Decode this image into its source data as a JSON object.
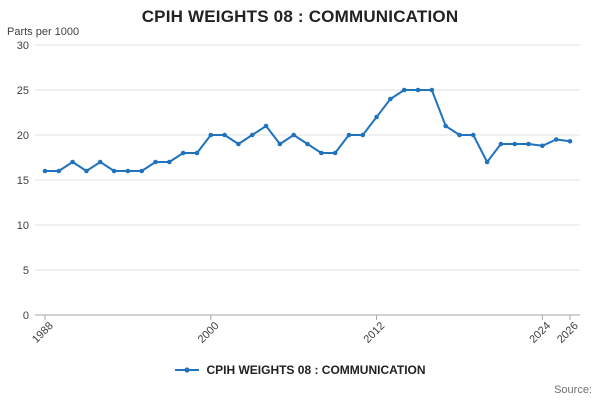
{
  "title": "CPIH WEIGHTS 08 : COMMUNICATION",
  "y_axis_title": "Parts per 1000",
  "source_label": "Source:",
  "legend": {
    "label": "CPIH WEIGHTS 08 : COMMUNICATION"
  },
  "colors": {
    "line": "#2073bc",
    "grid": "#e0e0e0",
    "axis": "#a6a6a6",
    "tick_text": "#414042"
  },
  "chart_data": {
    "type": "line",
    "title": "CPIH WEIGHTS 08 : COMMUNICATION",
    "xlabel": "",
    "ylabel": "Parts per 1000",
    "ylim": [
      0,
      30
    ],
    "y_ticks": [
      0,
      5,
      10,
      15,
      20,
      25,
      30
    ],
    "x_tick_labels": [
      1988,
      2000,
      2012,
      2024,
      2026
    ],
    "grid": true,
    "legend_position": "bottom",
    "x": [
      1988,
      1989,
      1990,
      1991,
      1992,
      1993,
      1994,
      1995,
      1996,
      1997,
      1998,
      1999,
      2000,
      2001,
      2002,
      2003,
      2004,
      2005,
      2006,
      2007,
      2008,
      2009,
      2010,
      2011,
      2012,
      2013,
      2014,
      2015,
      2016,
      2017,
      2018,
      2019,
      2020,
      2021,
      2022,
      2023,
      2024,
      2025,
      2026
    ],
    "series": [
      {
        "name": "CPIH WEIGHTS 08 : COMMUNICATION",
        "values": [
          16,
          16,
          17,
          16,
          17,
          16,
          16,
          16,
          17,
          17,
          18,
          18,
          20,
          20,
          19,
          20,
          21,
          19,
          20,
          19,
          18,
          18,
          20,
          20,
          22,
          24,
          25,
          25,
          25,
          21,
          20,
          20,
          17,
          19,
          19,
          19,
          18.8,
          19.5,
          19.3
        ]
      }
    ]
  }
}
